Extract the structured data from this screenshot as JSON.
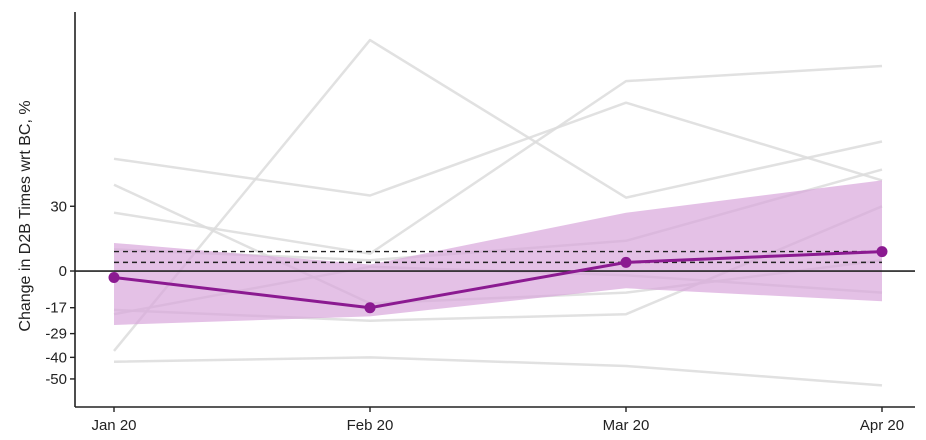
{
  "chart_data": {
    "type": "line",
    "title": "",
    "xlabel": "",
    "ylabel": "Change in D2B Times wrt BC, %",
    "categories": [
      "Jan 20",
      "Feb 20",
      "Mar 20",
      "Apr 20"
    ],
    "y_ticks": [
      30,
      0,
      -17,
      -29,
      -40,
      -50
    ],
    "ylim": [
      -63,
      120
    ],
    "grid": false,
    "legend": "none",
    "zero_line": 0,
    "reference_lines": [
      9,
      4
    ],
    "main_series": {
      "values": [
        -3,
        -17,
        4,
        9
      ],
      "ci_lower": [
        -25,
        -21,
        -8,
        -14
      ],
      "ci_upper": [
        13,
        3,
        27,
        42
      ]
    },
    "background_series": [
      [
        52,
        35,
        78,
        42
      ],
      [
        -37,
        107,
        34,
        60
      ],
      [
        27,
        8,
        88,
        95
      ],
      [
        -20,
        2,
        -2,
        -10
      ],
      [
        -42,
        -40,
        -44,
        -53
      ],
      [
        -18,
        -23,
        -20,
        30
      ],
      [
        10,
        5,
        14,
        47
      ],
      [
        40,
        -15,
        -10,
        5
      ]
    ],
    "colors": {
      "main": "#8b1a91",
      "band": "#d9a6dc",
      "background_lines": "#dcdcdc",
      "axis": "#222222"
    }
  }
}
